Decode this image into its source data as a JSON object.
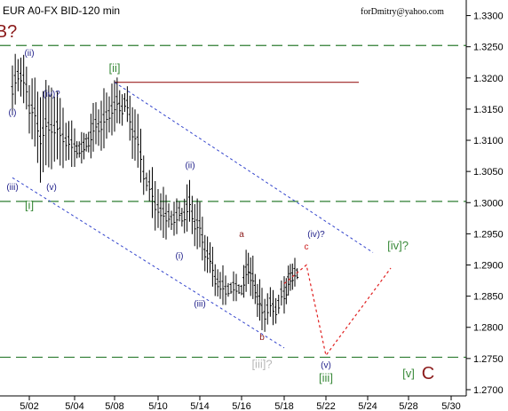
{
  "header": {
    "instrument": "EUR A0-FX BID-120 min",
    "author": "forDmitry@yahoo.com"
  },
  "chart_data": {
    "type": "candlestick",
    "y_ticks": [
      "1.3300",
      "1.3250",
      "1.3200",
      "1.3150",
      "1.3100",
      "1.3050",
      "1.3000",
      "1.2950",
      "1.2900",
      "1.2850",
      "1.2800",
      "1.2750",
      "1.2700"
    ],
    "x_ticks": [
      "5/02",
      "5/04",
      "5/08",
      "5/10",
      "5/14",
      "5/16",
      "5/18",
      "5/22",
      "5/24",
      "5/28",
      "5/30"
    ],
    "ylim": [
      1.269,
      1.3325
    ],
    "levels": [
      1.3252,
      1.3002,
      1.2752
    ],
    "resistance": {
      "from": "5/08",
      "to": "5/24",
      "price": 1.3193
    },
    "series": [
      {
        "date": "5/01",
        "high": 1.322,
        "low": 1.315
      },
      {
        "date": "5/01",
        "high": 1.324,
        "low": 1.318
      },
      {
        "date": "5/02",
        "high": 1.32,
        "low": 1.312
      },
      {
        "date": "5/02",
        "high": 1.318,
        "low": 1.304
      },
      {
        "date": "5/03",
        "high": 1.319,
        "low": 1.306
      },
      {
        "date": "5/03",
        "high": 1.315,
        "low": 1.306
      },
      {
        "date": "5/04",
        "high": 1.311,
        "low": 1.306
      },
      {
        "date": "5/04",
        "high": 1.31,
        "low": 1.307
      },
      {
        "date": "5/07",
        "high": 1.315,
        "low": 1.308
      },
      {
        "date": "5/08",
        "high": 1.3193,
        "low": 1.311
      },
      {
        "date": "5/08",
        "high": 1.318,
        "low": 1.314
      },
      {
        "date": "5/09",
        "high": 1.316,
        "low": 1.306
      },
      {
        "date": "5/09",
        "high": 1.306,
        "low": 1.301
      },
      {
        "date": "5/10",
        "high": 1.303,
        "low": 1.295
      },
      {
        "date": "5/10",
        "high": 1.3,
        "low": 1.295
      },
      {
        "date": "5/11",
        "high": 1.2995,
        "low": 1.296
      },
      {
        "date": "5/11",
        "high": 1.3025,
        "low": 1.296
      },
      {
        "date": "5/14",
        "high": 1.299,
        "low": 1.292
      },
      {
        "date": "5/14",
        "high": 1.293,
        "low": 1.288
      },
      {
        "date": "5/15",
        "high": 1.289,
        "low": 1.284
      },
      {
        "date": "5/15",
        "high": 1.288,
        "low": 1.285
      },
      {
        "date": "5/16",
        "high": 1.288,
        "low": 1.285
      },
      {
        "date": "5/16",
        "high": 1.293,
        "low": 1.287
      },
      {
        "date": "5/16",
        "high": 1.289,
        "low": 1.284
      },
      {
        "date": "5/17",
        "high": 1.286,
        "low": 1.28
      },
      {
        "date": "5/17",
        "high": 1.285,
        "low": 1.281
      },
      {
        "date": "5/18",
        "high": 1.287,
        "low": 1.283
      },
      {
        "date": "5/18",
        "high": 1.289,
        "low": 1.286
      },
      {
        "date": "5/18",
        "high": 1.29,
        "low": 1.287
      }
    ],
    "channel": [
      {
        "from": [
          "5/08",
          1.3193
        ],
        "to": [
          "5/25",
          1.292
        ]
      },
      {
        "from": [
          "5/01",
          1.304
        ],
        "to": [
          "5/18",
          1.2767
        ]
      }
    ],
    "projection": [
      [
        "5/18",
        1.287
      ],
      [
        "5/20",
        1.29
      ],
      [
        "5/22",
        1.2755
      ],
      [
        "5/26",
        1.2895
      ]
    ],
    "annotations": [
      {
        "text": "B?",
        "color": "#8b1a1a",
        "date": "4/30",
        "price": 1.3265
      },
      {
        "text": "(ii)",
        "color": "#20208a",
        "date": "5/02",
        "price": 1.3235
      },
      {
        "text": "[ii]",
        "color": "#3a8a3a",
        "date": "5/08",
        "price": 1.321
      },
      {
        "text": "(iv)?",
        "color": "#20208a",
        "date": "5/03",
        "price": 1.317
      },
      {
        "text": "(i)",
        "color": "#20208a",
        "date": "5/01",
        "price": 1.314
      },
      {
        "text": "(ii)",
        "color": "#20208a",
        "date": "5/12",
        "price": 1.3055
      },
      {
        "text": "(iii)",
        "color": "#20208a",
        "date": "5/01",
        "price": 1.302
      },
      {
        "text": "(v)",
        "color": "#20208a",
        "date": "5/03",
        "price": 1.302
      },
      {
        "text": "[i]",
        "color": "#3a8a3a",
        "date": "5/02",
        "price": 1.299
      },
      {
        "text": "(i)",
        "color": "#20208a",
        "date": "5/11",
        "price": 1.291
      },
      {
        "text": "a",
        "color": "#8b1a1a",
        "date": "5/16",
        "price": 1.2945
      },
      {
        "text": "(iv)?",
        "color": "#20208a",
        "date": "5/21",
        "price": 1.2945
      },
      {
        "text": "c",
        "color": "#cc2020",
        "date": "5/20",
        "price": 1.2925
      },
      {
        "text": "[iv]?",
        "color": "#3a8a3a",
        "date": "5/27",
        "price": 1.2925
      },
      {
        "text": "(iii)",
        "color": "#20208a",
        "date": "5/14",
        "price": 1.2833
      },
      {
        "text": "b",
        "color": "#8b1a1a",
        "date": "5/17",
        "price": 1.278
      },
      {
        "text": "[iii]?",
        "color": "#b8b8b8",
        "date": "5/17",
        "price": 1.2735
      },
      {
        "text": "(v)",
        "color": "#20208a",
        "date": "5/22",
        "price": 1.2735
      },
      {
        "text": "[iii]",
        "color": "#3a8a3a",
        "date": "5/22",
        "price": 1.2713
      },
      {
        "text": "[v]",
        "color": "#3a8a3a",
        "date": "5/28",
        "price": 1.272
      },
      {
        "text": "C",
        "color": "#8b1a1a",
        "date": "5/29",
        "price": 1.2717
      }
    ],
    "grid": false,
    "legend": "none"
  }
}
